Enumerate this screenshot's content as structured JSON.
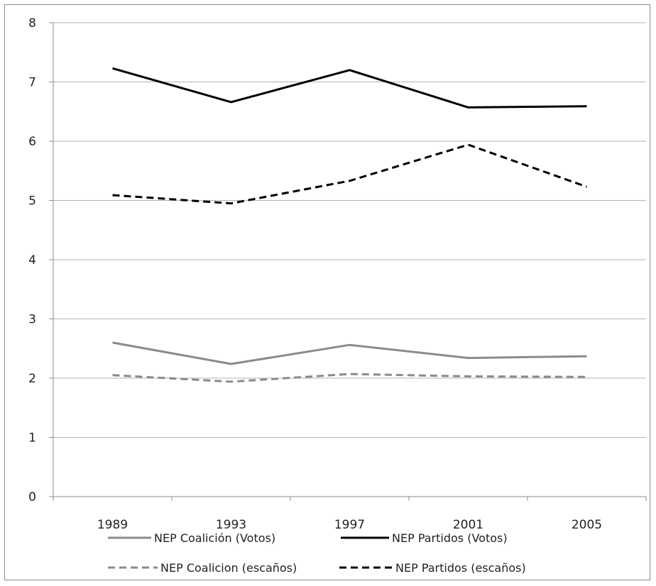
{
  "chart_data": {
    "type": "line",
    "title": "",
    "xlabel": "",
    "ylabel": "",
    "categories": [
      "1989",
      "1993",
      "1997",
      "2001",
      "2005"
    ],
    "ylim": [
      0,
      8
    ],
    "yticks": [
      0,
      1,
      2,
      3,
      4,
      5,
      6,
      7,
      8
    ],
    "grid": "horizontal",
    "legend_position": "bottom",
    "series": [
      {
        "name": "NEP Coalición (Votos)",
        "values": [
          2.6,
          2.24,
          2.56,
          2.34,
          2.37
        ],
        "color": "#8a8a8a",
        "dash": "solid"
      },
      {
        "name": "NEP Partidos (Votos)",
        "values": [
          7.23,
          6.66,
          7.2,
          6.57,
          6.59
        ],
        "color": "#000000",
        "dash": "solid"
      },
      {
        "name": "NEP Coalicion (escaños)",
        "values": [
          2.05,
          1.94,
          2.07,
          2.03,
          2.02
        ],
        "color": "#8a8a8a",
        "dash": "dashed"
      },
      {
        "name": "NEP Partidos (escaños)",
        "values": [
          5.09,
          4.95,
          5.33,
          5.94,
          5.23
        ],
        "color": "#000000",
        "dash": "dashed"
      }
    ]
  }
}
